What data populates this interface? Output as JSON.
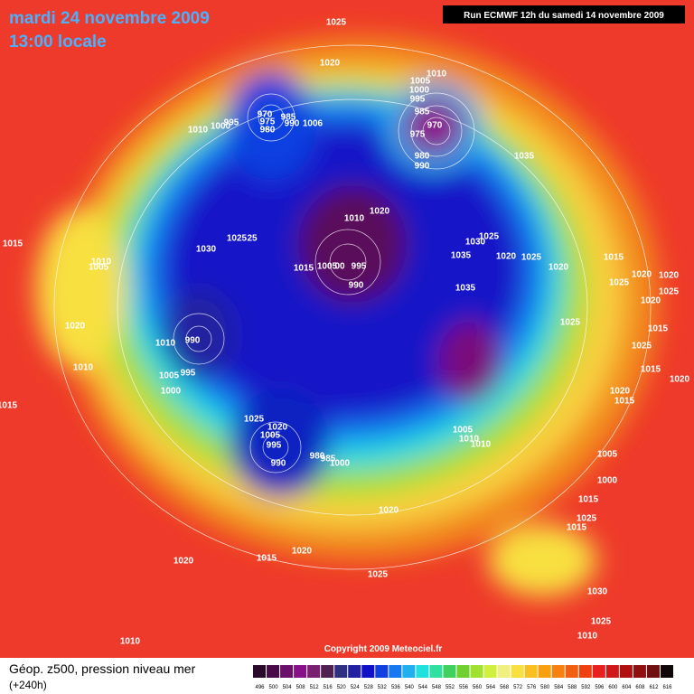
{
  "header": {
    "date": "mardi 24 novembre 2009",
    "time": "13:00 locale",
    "run": "Run ECMWF 12h du samedi 14 novembre 2009"
  },
  "copyright": "Copyright 2009 Meteociel.fr",
  "footer": {
    "label": "Géop. z500, pression niveau mer",
    "lead": "(+240h)"
  },
  "scale": {
    "values": [
      496,
      500,
      504,
      508,
      512,
      516,
      520,
      524,
      528,
      532,
      536,
      540,
      544,
      548,
      552,
      556,
      560,
      564,
      568,
      572,
      576,
      580,
      584,
      588,
      592,
      596,
      600,
      604,
      608,
      612,
      616
    ],
    "colors": [
      "#2a0a2a",
      "#4a0a4a",
      "#6a106a",
      "#8a108a",
      "#7a2070",
      "#502050",
      "#303080",
      "#2020a0",
      "#1010c8",
      "#1040e0",
      "#1878f0",
      "#20b0f0",
      "#20e0e0",
      "#30e0a0",
      "#40d060",
      "#70d030",
      "#a0e030",
      "#d0f040",
      "#f0f080",
      "#f8e040",
      "#f8c020",
      "#f8a010",
      "#f88010",
      "#f06010",
      "#f04010",
      "#e82020",
      "#d01818",
      "#b01010",
      "#901010",
      "#701010",
      "#100808"
    ]
  },
  "isobar_labels": [
    "1025",
    "1020",
    "1010",
    "1005",
    "1000",
    "995",
    "985",
    "970",
    "975",
    "980",
    "990",
    "1035",
    "970",
    "975",
    "980",
    "985",
    "990",
    "1006",
    "1000",
    "995",
    "1010",
    "1010",
    "1020",
    "1030",
    "1025",
    "1035",
    "1020",
    "1025",
    "1020",
    "1035",
    "1030",
    "1025",
    "25",
    "1015",
    "1005",
    "00",
    "995",
    "990",
    "1015",
    "1010",
    "1005",
    "1020",
    "1010",
    "990",
    "1005",
    "995",
    "1000",
    "1025",
    "1015",
    "1025",
    "1020",
    "1020",
    "1025",
    "1020",
    "1015",
    "1025",
    "1015",
    "1020",
    "1020",
    "1015",
    "1025",
    "1020",
    "1005",
    "995",
    "990",
    "980",
    "985",
    "1000",
    "1005",
    "1010",
    "1010",
    "1005",
    "1000",
    "1020",
    "1015",
    "1025",
    "1015",
    "1020",
    "1015",
    "1020",
    "1025",
    "1030",
    "1025",
    "1010",
    "1010",
    "1010",
    "1015"
  ]
}
